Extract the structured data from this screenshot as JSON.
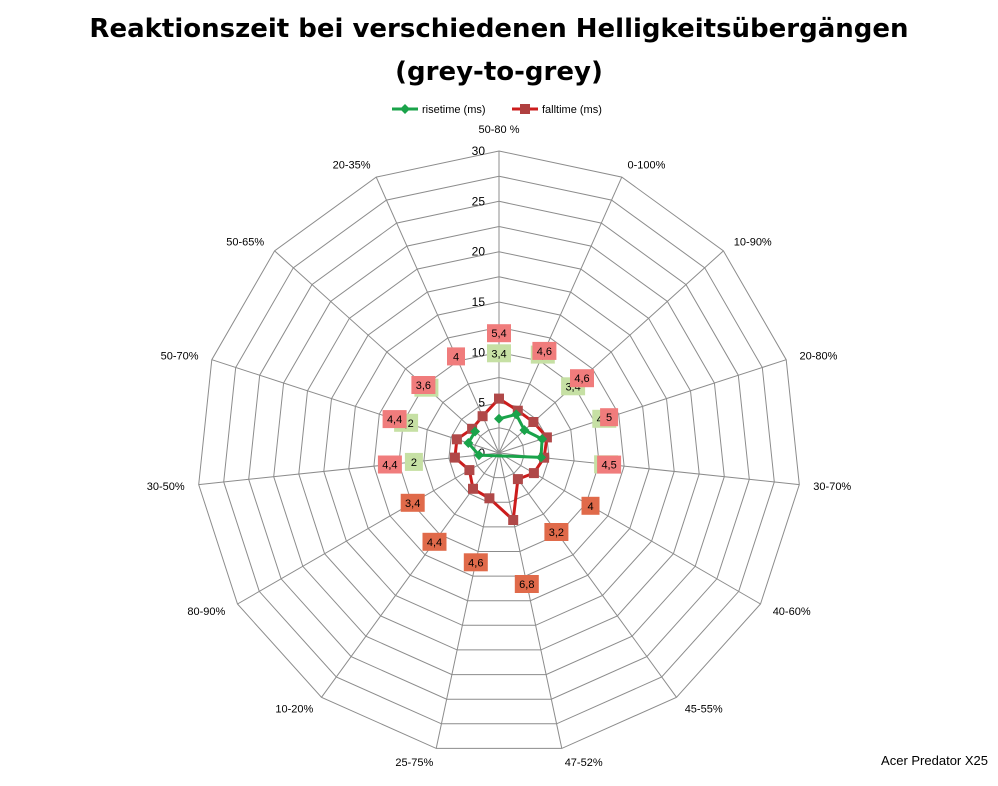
{
  "chart_data": {
    "type": "radar",
    "title_lines": [
      "Reaktionszeit bei verschiedenen Helligkeitsübergängen",
      "(grey-to-grey)"
    ],
    "categories": [
      "50-80 %",
      "0-100%",
      "10-90%",
      "20-80%",
      "30-70%",
      "40-60%",
      "45-55%",
      "47-52%",
      "25-75%",
      "10-20%",
      "80-90%",
      "30-50%",
      "50-70%",
      "50-65%",
      "20-35%"
    ],
    "rlim": [
      0,
      30
    ],
    "ticks": [
      0,
      5,
      10,
      15,
      20,
      25,
      30
    ],
    "grid": true,
    "legend_position": "top",
    "series": [
      {
        "name": "risetime (ms)",
        "color": "#1aa34a",
        "label_bg": "#c6e0a4",
        "values": [
          3.4,
          4.2,
          3.4,
          4.5,
          4.2,
          null,
          null,
          null,
          null,
          null,
          null,
          2,
          3.2,
          3.2,
          null
        ],
        "labels": [
          "3,4",
          "4,2",
          "3,4",
          "4,5",
          "4,2",
          null,
          null,
          null,
          null,
          null,
          null,
          "2",
          "3,2",
          "3,2",
          null
        ]
      },
      {
        "name": "falltime (ms)",
        "color": "#cc1c1c",
        "label_bg": "#f07c7c",
        "label_bg_alt": "#e06a4a",
        "values": [
          5.4,
          4.6,
          4.6,
          5,
          4.5,
          4,
          3.2,
          6.8,
          4.6,
          4.4,
          3.4,
          4.4,
          4.4,
          3.6,
          4
        ],
        "labels": [
          "5,4",
          "4,6",
          "4,6",
          "5",
          "4,5",
          "4",
          "3,2",
          "6,8",
          "4,6",
          "4,4",
          "3,4",
          "4,4",
          "4,4",
          "3,6",
          "4"
        ]
      }
    ]
  },
  "footnote": "Acer Predator X25"
}
